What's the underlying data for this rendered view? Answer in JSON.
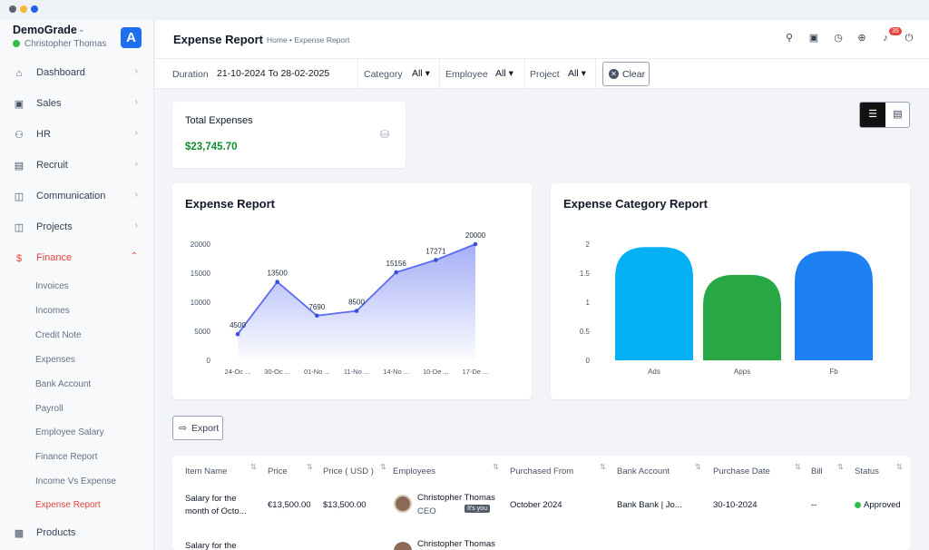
{
  "window": {
    "controls": [
      "close",
      "minimize",
      "maximize"
    ]
  },
  "sidebar": {
    "company": "DemoGrade",
    "user": "Christopher Thomas",
    "logo_letter": "A",
    "items": [
      {
        "label": "Dashboard",
        "icon": "home-icon"
      },
      {
        "label": "Sales",
        "icon": "id-card-icon"
      },
      {
        "label": "HR",
        "icon": "users-icon"
      },
      {
        "label": "Recruit",
        "icon": "badge-icon"
      },
      {
        "label": "Communication",
        "icon": "briefcase-icon"
      },
      {
        "label": "Projects",
        "icon": "folder-icon"
      },
      {
        "label": "Finance",
        "icon": "dollar-icon"
      },
      {
        "label": "Products",
        "icon": "basket-icon"
      }
    ],
    "finance_sub": [
      "Invoices",
      "Incomes",
      "Credit Note",
      "Expenses",
      "Bank Account",
      "Payroll",
      "Employee Salary",
      "Finance Report",
      "Income Vs Expense",
      "Expense Report"
    ]
  },
  "header": {
    "title": "Expense Report",
    "breadcrumb": "Home • Expense Report",
    "notification_count": "35"
  },
  "filters": {
    "duration_label": "Duration",
    "duration_value": "21-10-2024 To 28-02-2025",
    "category_label": "Category",
    "category_value": "All",
    "employee_label": "Employee",
    "employee_value": "All",
    "project_label": "Project",
    "project_value": "All",
    "clear_label": "Clear"
  },
  "summary": {
    "title": "Total Expenses",
    "value": "$23,745.70"
  },
  "export_label": "Export",
  "chart_data": [
    {
      "type": "area",
      "title": "Expense Report",
      "categories": [
        "24-Oc ...",
        "30-Oc ...",
        "01-No ...",
        "11-No ...",
        "14-No ...",
        "10-De ...",
        "17-De ..."
      ],
      "values": [
        4500,
        13500,
        7690,
        8500,
        15156,
        17271,
        20000
      ],
      "data_labels": [
        "4500",
        "13500",
        "7690",
        "8500",
        "15156",
        "17271",
        "20000"
      ],
      "yticks": [
        "0",
        "5000",
        "10000",
        "15000",
        "20000"
      ],
      "ylim": [
        0,
        20000
      ],
      "color": "#5b6cf0"
    },
    {
      "type": "bar",
      "title": "Expense Category Report",
      "categories": [
        "Ads",
        "Apps",
        "Fb"
      ],
      "values": [
        1.95,
        1.47,
        1.88
      ],
      "yticks": [
        "0",
        "0.5",
        "1",
        "1.5",
        "2"
      ],
      "ylim": [
        0,
        2
      ],
      "colors": [
        "#06b0f5",
        "#28a745",
        "#1e80f2"
      ]
    }
  ],
  "table": {
    "columns": [
      "Item Name",
      "Price",
      "Price ( USD )",
      "Employees",
      "Purchased From",
      "Bank Account",
      "Purchase Date",
      "Bill",
      "Status"
    ],
    "rows": [
      {
        "item": [
          "Salary for the",
          "month of Octo..."
        ],
        "price": "€13,500.00",
        "price_usd": "$13,500.00",
        "employee": "Christopher Thomas",
        "employee_role": "CEO",
        "you_badge": "It's you",
        "purchased_from": "October 2024",
        "bank": "Bank Bank | Jo...",
        "date": "30-10-2024",
        "bill": "--",
        "status": "Approved"
      },
      {
        "item": [
          "Salary for the",
          ""
        ],
        "employee": "Christopher Thomas"
      }
    ]
  }
}
